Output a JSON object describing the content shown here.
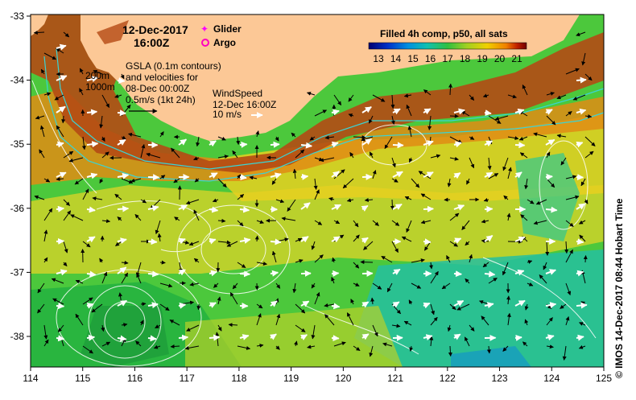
{
  "map": {
    "date_line": "12-Dec-2017",
    "time_line": "16:00Z",
    "colorbar_title": "Filled 4h comp, p50, all sats",
    "colorbar_ticks": [
      "13",
      "14",
      "15",
      "16",
      "17",
      "18",
      "19",
      "20",
      "21"
    ],
    "colorbar_colors": [
      "#000070",
      "#0030c8",
      "#0090e0",
      "#10c0b0",
      "#30c040",
      "#a0d020",
      "#f0d000",
      "#f08000",
      "#c02000",
      "#700000"
    ],
    "legend": {
      "glider": "Glider",
      "argo": "Argo",
      "glider_color": "#ff00ff",
      "argo_color": "#ff00c0"
    },
    "gsla_lines": [
      "GSLA (0.1m contours)",
      "and velocities for",
      "08-Dec 00:00Z",
      "0.5m/s (1kt 24h)"
    ],
    "isobath_labels": [
      "200m",
      "1000m"
    ],
    "wind_lines": [
      "WindSpeed",
      "12-Dec 16:00Z",
      "10 m/s"
    ],
    "lon_ticks": [
      "114",
      "115",
      "116",
      "117",
      "118",
      "119",
      "120",
      "121",
      "122",
      "123",
      "124",
      "125"
    ],
    "lat_ticks": [
      "-33",
      "-34",
      "-35",
      "-36",
      "-37",
      "-38"
    ],
    "credit": "© IMOS 14-Dec-2017 08:44 Hobart Time",
    "land_color": "#fcc896"
  }
}
